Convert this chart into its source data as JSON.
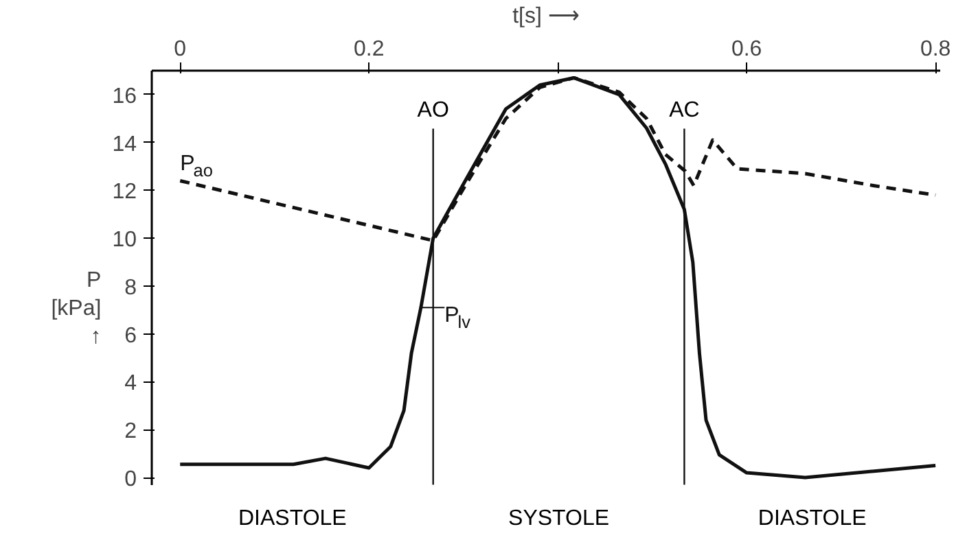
{
  "chart_data": {
    "type": "line",
    "xlabel": "t[s] ⟶",
    "ylabel": "P\n[kPa]\n↑",
    "xlim": [
      -0.03,
      0.805
    ],
    "xticks": [
      0,
      0.2,
      {
        "value": 0.4,
        "label": null
      },
      0.6,
      0.8
    ],
    "ylim": [
      -0.3,
      17
    ],
    "yticks": [
      0,
      2,
      4,
      6,
      8,
      10,
      12,
      14,
      16
    ],
    "marker": "none",
    "series": [
      {
        "name": "P$_{ao}$",
        "color": "#111111",
        "line_style": "dashed",
        "x": [
          0,
          0.268,
          0.302,
          0.345,
          0.381,
          0.417,
          0.465,
          0.494,
          0.514,
          0.535,
          0.544,
          0.564,
          0.59,
          0.662,
          0.734,
          0.8
        ],
        "values": [
          12.4,
          9.9,
          12.2,
          15.0,
          16.3,
          16.7,
          16.1,
          15.0,
          13.5,
          12.8,
          12.2,
          14.1,
          12.9,
          12.7,
          12.2,
          11.8
        ]
      },
      {
        "name": "P$_{lv}$",
        "color": "#111111",
        "line_style": "solid",
        "x": [
          0,
          0.12,
          0.154,
          0.2,
          0.223,
          0.237,
          0.245,
          0.255,
          0.268,
          0.302,
          0.345,
          0.381,
          0.417,
          0.465,
          0.494,
          0.514,
          0.534,
          0.543,
          0.55,
          0.557,
          0.571,
          0.6,
          0.662,
          0.8
        ],
        "values": [
          0.55,
          0.55,
          0.8,
          0.4,
          1.3,
          2.8,
          5.2,
          7.1,
          10.0,
          12.4,
          15.4,
          16.4,
          16.7,
          16.0,
          14.6,
          13.1,
          11.2,
          9.0,
          5.2,
          2.4,
          0.95,
          0.2,
          0.0,
          0.5
        ]
      }
    ],
    "ref_lines": [
      {
        "axis": "x",
        "value": 0.268,
        "label": "AO"
      },
      {
        "axis": "x",
        "value": 0.534,
        "label": "AC"
      }
    ],
    "annotations": [
      "DIASTOLE",
      "SYSTOLE",
      "DIASTOLE"
    ]
  }
}
